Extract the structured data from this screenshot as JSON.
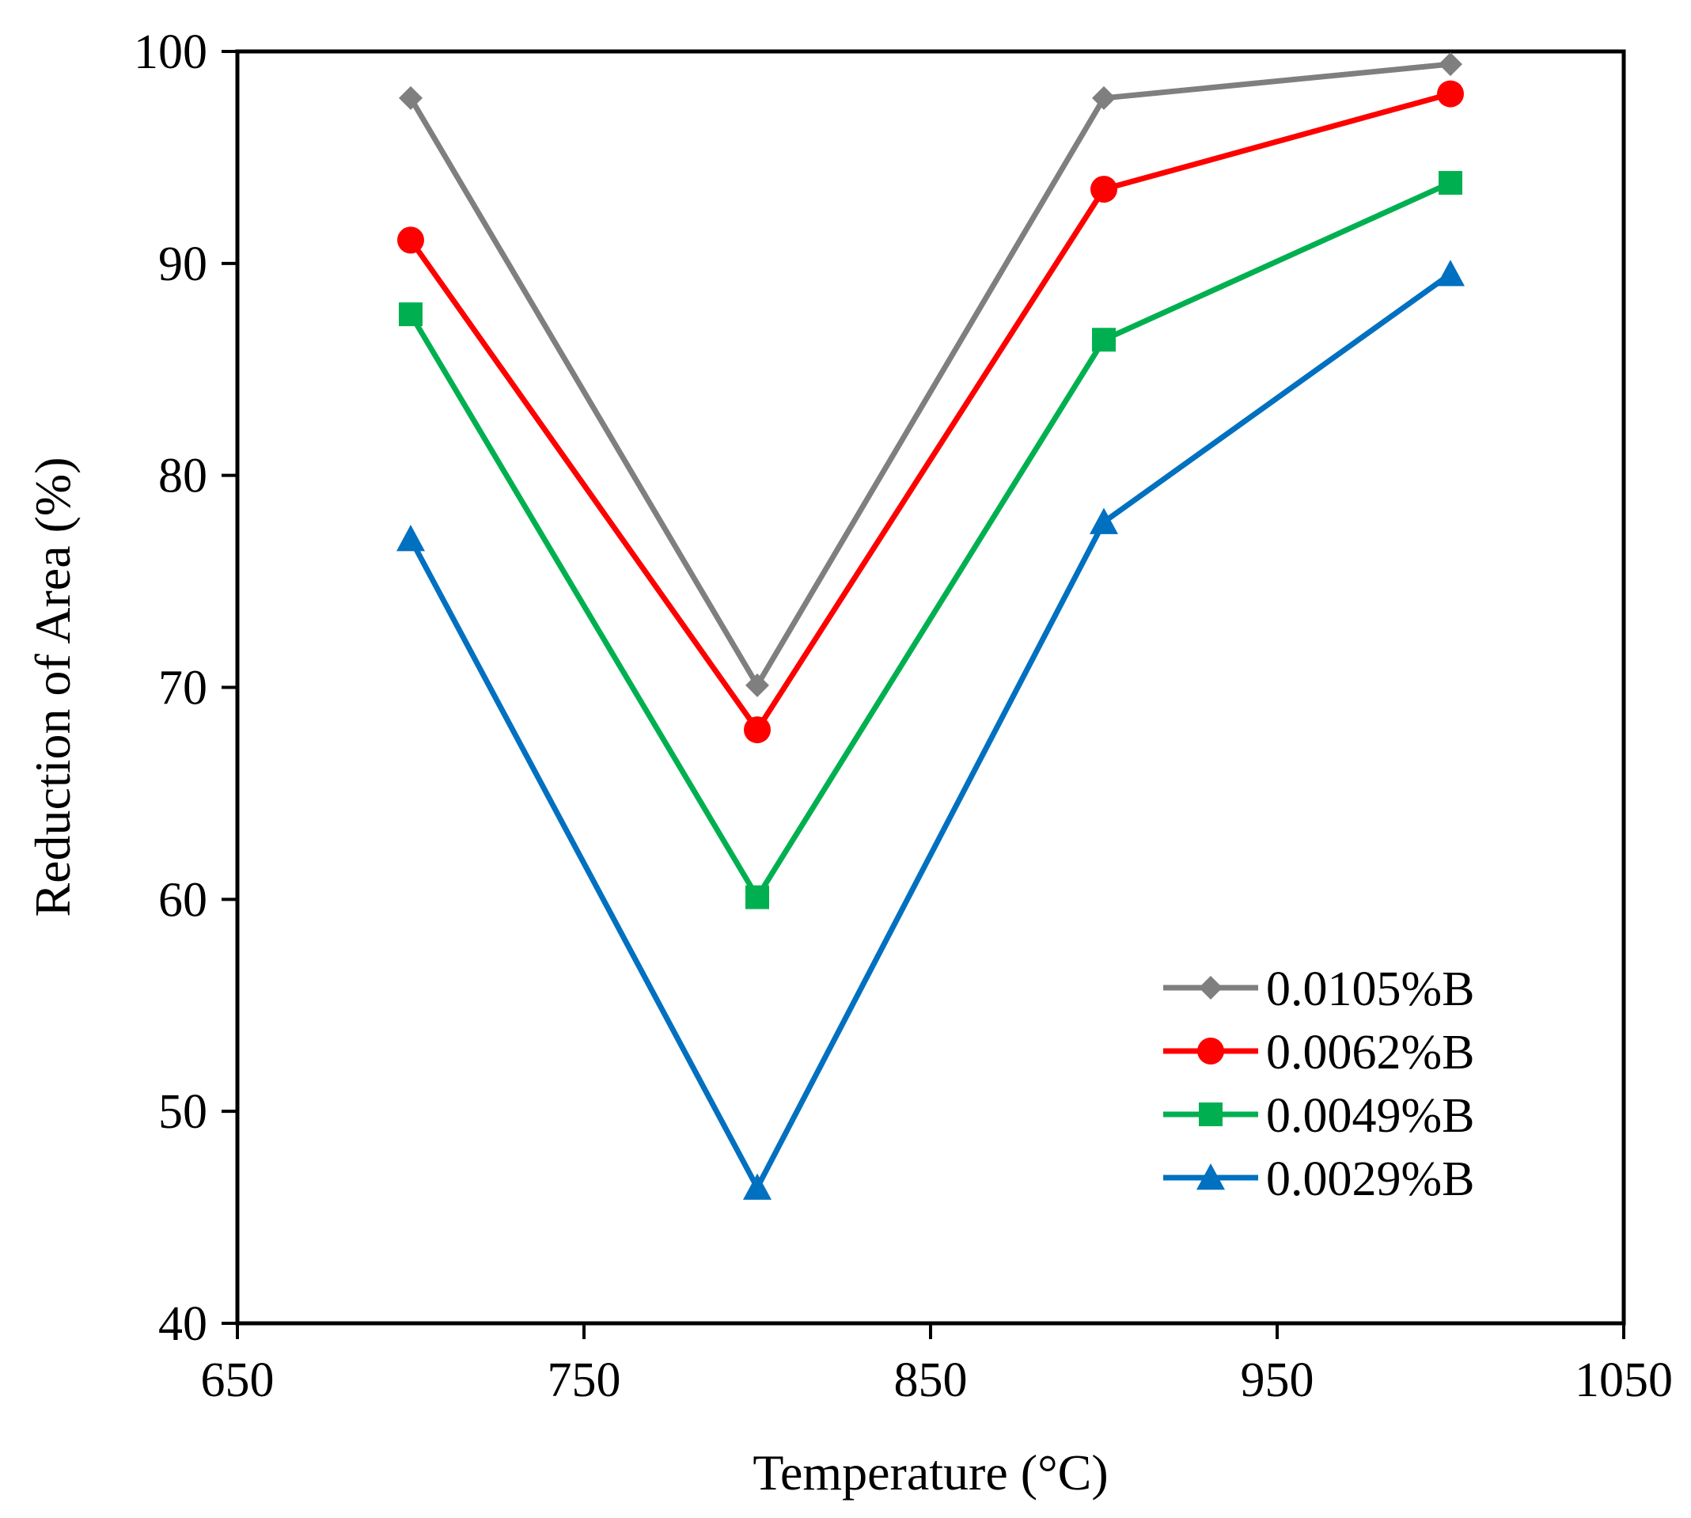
{
  "chart_data": {
    "type": "line",
    "title": "",
    "xlabel": "Temperature (°C)",
    "ylabel": "Reduction of Area (%)",
    "xlim": [
      650,
      1050
    ],
    "ylim": [
      40,
      100
    ],
    "xticks": [
      650,
      750,
      850,
      950,
      1050
    ],
    "yticks": [
      40,
      50,
      60,
      70,
      80,
      90,
      100
    ],
    "grid": false,
    "legend_position": "lower-right",
    "x": [
      700,
      800,
      900,
      1000
    ],
    "series": [
      {
        "name": "0.0105%B",
        "marker": "diamond",
        "color": "#7f7f7f",
        "values": [
          97.8,
          70.1,
          97.8,
          99.4
        ]
      },
      {
        "name": "0.0062%B",
        "marker": "circle",
        "color": "#ff0000",
        "values": [
          91.1,
          68.0,
          93.5,
          98.0
        ]
      },
      {
        "name": "0.0049%B",
        "marker": "square",
        "color": "#00b050",
        "values": [
          87.6,
          60.1,
          86.4,
          93.8
        ]
      },
      {
        "name": "0.0029%B",
        "marker": "triangle",
        "color": "#0070c0",
        "values": [
          77.0,
          46.4,
          77.8,
          89.5
        ]
      }
    ]
  }
}
